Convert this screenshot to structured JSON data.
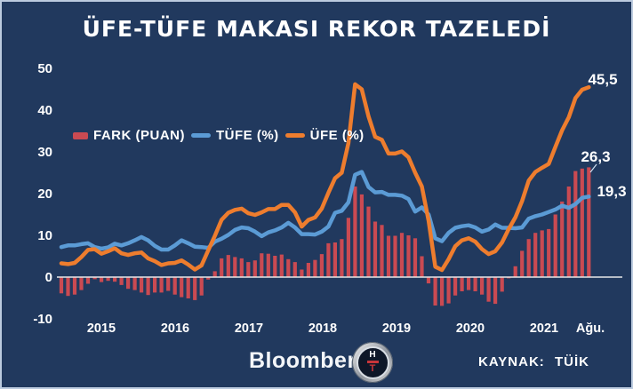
{
  "title": "ÜFE-TÜFE MAKASI REKOR TAZELEDİ",
  "colors": {
    "background": "#21395E",
    "bar": "#CA4A52",
    "tufe_line": "#5B9BD5",
    "ufe_line": "#EE7D2E",
    "zero_line": "#E8E8E8",
    "text": "#FFFFFF"
  },
  "footer": {
    "brand": "Bloomberg",
    "logo_top": "H",
    "logo_bottom": "T",
    "source": "KAYNAK: TÜİK"
  },
  "chart_data": {
    "type": "bar",
    "subtype": "combo-bar-and-lines",
    "period": "monthly, Jan 2015 – Aug 2021",
    "x_axis_labels": [
      "2015",
      "2016",
      "2017",
      "2018",
      "2019",
      "2020",
      "2021",
      "Ağu."
    ],
    "y_ticks": [
      50,
      40,
      30,
      20,
      10,
      0,
      -10
    ],
    "ylim": [
      -10,
      50
    ],
    "grid": false,
    "legend_position": "upper-left-inside",
    "series": [
      {
        "name": "FARK (PUAN)",
        "type": "bar",
        "color": "#CA4A52",
        "values": [
          -3.9,
          -4.5,
          -4.2,
          -3.1,
          -1.6,
          -0.5,
          -1.2,
          -0.9,
          -1.1,
          -1.9,
          -2.8,
          -3.1,
          -3.7,
          -4.3,
          -3.7,
          -3.7,
          -3.3,
          -4.2,
          -4.8,
          -5.1,
          -5.5,
          -4.4,
          -0.6,
          1.4,
          4.5,
          5.3,
          4.8,
          4.5,
          3.6,
          4.0,
          5.7,
          5.6,
          5.1,
          5.4,
          4.3,
          3.6,
          1.8,
          3.4,
          4.1,
          5.5,
          8.1,
          8.3,
          9.1,
          14.2,
          21.7,
          19.8,
          16.9,
          13.3,
          12.5,
          9.9,
          9.9,
          10.6,
          10.0,
          9.3,
          5.0,
          -1.5,
          -6.8,
          -6.9,
          -6.3,
          -4.4,
          -3.4,
          -3.1,
          -3.4,
          -4.2,
          -5.9,
          -6.4,
          -3.5,
          -0.3,
          2.6,
          6.3,
          9.1,
          10.6,
          11.2,
          11.5,
          15.0,
          18.1,
          21.7,
          25.4,
          26.0,
          26.3
        ]
      },
      {
        "name": "TÜFE (%)",
        "type": "line",
        "color": "#5B9BD5",
        "values": [
          7.2,
          7.6,
          7.6,
          7.9,
          8.1,
          7.2,
          6.8,
          7.1,
          8.0,
          7.6,
          8.1,
          8.8,
          9.6,
          8.8,
          7.5,
          6.6,
          6.6,
          7.6,
          8.8,
          8.1,
          7.3,
          7.2,
          7.0,
          8.5,
          9.2,
          10.1,
          11.3,
          11.9,
          11.7,
          10.9,
          9.8,
          10.7,
          11.2,
          11.9,
          13.0,
          11.9,
          10.3,
          10.3,
          10.2,
          10.9,
          12.1,
          15.4,
          15.9,
          17.9,
          24.5,
          25.2,
          21.6,
          20.3,
          20.4,
          19.7,
          19.7,
          19.5,
          18.7,
          15.7,
          16.7,
          15.0,
          9.3,
          8.6,
          10.6,
          11.8,
          12.2,
          12.4,
          11.9,
          10.9,
          11.4,
          12.6,
          11.8,
          11.8,
          11.7,
          11.9,
          14.0,
          14.6,
          15.0,
          15.6,
          16.2,
          17.1,
          16.6,
          17.5,
          19.0,
          19.3
        ]
      },
      {
        "name": "ÜFE (%)",
        "type": "line",
        "color": "#EE7D2E",
        "values": [
          3.3,
          3.1,
          3.4,
          4.8,
          6.5,
          6.7,
          5.6,
          6.2,
          6.9,
          5.7,
          5.3,
          5.7,
          5.9,
          4.5,
          3.8,
          2.9,
          3.3,
          3.4,
          4.0,
          3.0,
          1.8,
          2.8,
          6.4,
          9.9,
          13.7,
          15.4,
          16.1,
          16.4,
          15.3,
          14.9,
          15.5,
          16.3,
          16.3,
          17.3,
          17.3,
          15.5,
          12.1,
          13.7,
          14.3,
          16.4,
          20.2,
          23.7,
          25.0,
          32.1,
          46.2,
          45.0,
          38.5,
          33.6,
          32.9,
          29.6,
          29.6,
          30.1,
          28.7,
          25.0,
          21.7,
          13.5,
          2.5,
          1.7,
          4.3,
          7.4,
          8.8,
          9.3,
          8.5,
          6.7,
          5.5,
          6.2,
          8.3,
          11.5,
          14.3,
          18.2,
          23.1,
          25.2,
          26.2,
          27.1,
          31.2,
          35.2,
          38.3,
          42.9,
          44.9,
          45.5
        ]
      }
    ],
    "end_labels": [
      {
        "series": "ÜFE (%)",
        "text": "45,5"
      },
      {
        "series": "FARK (PUAN)",
        "text": "26,3"
      },
      {
        "series": "TÜFE (%)",
        "text": "19,3"
      }
    ]
  }
}
